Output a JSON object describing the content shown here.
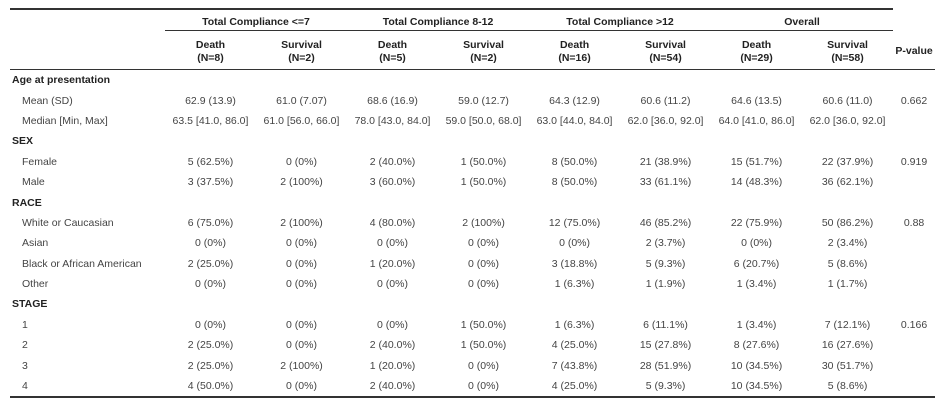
{
  "header": {
    "groups": [
      "Total Compliance <=7",
      "Total Compliance 8-12",
      "Total Compliance >12",
      "Overall"
    ],
    "subs": [
      {
        "name": "Death",
        "n": "(N=8)"
      },
      {
        "name": "Survival",
        "n": "(N=2)"
      },
      {
        "name": "Death",
        "n": "(N=5)"
      },
      {
        "name": "Survival",
        "n": "(N=2)"
      },
      {
        "name": "Death",
        "n": "(N=16)"
      },
      {
        "name": "Survival",
        "n": "(N=54)"
      },
      {
        "name": "Death",
        "n": "(N=29)"
      },
      {
        "name": "Survival",
        "n": "(N=58)"
      }
    ],
    "pvalue": "P-value"
  },
  "rows": [
    {
      "type": "section",
      "label": "Age at presentation",
      "cells": [
        "",
        "",
        "",
        "",
        "",
        "",
        "",
        ""
      ],
      "p": ""
    },
    {
      "type": "item",
      "label": "Mean (SD)",
      "cells": [
        "62.9 (13.9)",
        "61.0 (7.07)",
        "68.6 (16.9)",
        "59.0 (12.7)",
        "64.3 (12.9)",
        "60.6 (11.2)",
        "64.6 (13.5)",
        "60.6 (11.0)"
      ],
      "p": "0.662"
    },
    {
      "type": "item",
      "label": "Median [Min, Max]",
      "cells": [
        "63.5 [41.0, 86.0]",
        "61.0 [56.0, 66.0]",
        "78.0 [43.0, 84.0]",
        "59.0 [50.0, 68.0]",
        "63.0 [44.0, 84.0]",
        "62.0 [36.0, 92.0]",
        "64.0 [41.0, 86.0]",
        "62.0 [36.0, 92.0]"
      ],
      "p": ""
    },
    {
      "type": "section",
      "label": "SEX",
      "cells": [
        "",
        "",
        "",
        "",
        "",
        "",
        "",
        ""
      ],
      "p": ""
    },
    {
      "type": "item",
      "label": "Female",
      "cells": [
        "5 (62.5%)",
        "0 (0%)",
        "2 (40.0%)",
        "1 (50.0%)",
        "8 (50.0%)",
        "21 (38.9%)",
        "15 (51.7%)",
        "22 (37.9%)"
      ],
      "p": "0.919"
    },
    {
      "type": "item",
      "label": "Male",
      "cells": [
        "3 (37.5%)",
        "2 (100%)",
        "3 (60.0%)",
        "1 (50.0%)",
        "8 (50.0%)",
        "33 (61.1%)",
        "14 (48.3%)",
        "36 (62.1%)"
      ],
      "p": ""
    },
    {
      "type": "section",
      "label": "RACE",
      "cells": [
        "",
        "",
        "",
        "",
        "",
        "",
        "",
        ""
      ],
      "p": ""
    },
    {
      "type": "item",
      "label": "White or Caucasian",
      "cells": [
        "6 (75.0%)",
        "2 (100%)",
        "4 (80.0%)",
        "2 (100%)",
        "12 (75.0%)",
        "46 (85.2%)",
        "22 (75.9%)",
        "50 (86.2%)"
      ],
      "p": "0.88"
    },
    {
      "type": "item",
      "label": "Asian",
      "cells": [
        "0 (0%)",
        "0 (0%)",
        "0 (0%)",
        "0 (0%)",
        "0 (0%)",
        "2 (3.7%)",
        "0 (0%)",
        "2 (3.4%)"
      ],
      "p": ""
    },
    {
      "type": "item",
      "label": "Black or African American",
      "cells": [
        "2 (25.0%)",
        "0 (0%)",
        "1 (20.0%)",
        "0 (0%)",
        "3 (18.8%)",
        "5 (9.3%)",
        "6 (20.7%)",
        "5 (8.6%)"
      ],
      "p": ""
    },
    {
      "type": "item",
      "label": "Other",
      "cells": [
        "0 (0%)",
        "0 (0%)",
        "0 (0%)",
        "0 (0%)",
        "1 (6.3%)",
        "1 (1.9%)",
        "1 (3.4%)",
        "1 (1.7%)"
      ],
      "p": ""
    },
    {
      "type": "section",
      "label": "STAGE",
      "cells": [
        "",
        "",
        "",
        "",
        "",
        "",
        "",
        ""
      ],
      "p": ""
    },
    {
      "type": "item",
      "label": "1",
      "cells": [
        "0 (0%)",
        "0 (0%)",
        "0 (0%)",
        "1 (50.0%)",
        "1 (6.3%)",
        "6 (11.1%)",
        "1 (3.4%)",
        "7 (12.1%)"
      ],
      "p": "0.166"
    },
    {
      "type": "item",
      "label": "2",
      "cells": [
        "2 (25.0%)",
        "0 (0%)",
        "2 (40.0%)",
        "1 (50.0%)",
        "4 (25.0%)",
        "15 (27.8%)",
        "8 (27.6%)",
        "16 (27.6%)"
      ],
      "p": ""
    },
    {
      "type": "item",
      "label": "3",
      "cells": [
        "2 (25.0%)",
        "2 (100%)",
        "1 (20.0%)",
        "0 (0%)",
        "7 (43.8%)",
        "28 (51.9%)",
        "10 (34.5%)",
        "30 (51.7%)"
      ],
      "p": ""
    },
    {
      "type": "item",
      "label": "4",
      "cells": [
        "4 (50.0%)",
        "0 (0%)",
        "2 (40.0%)",
        "0 (0%)",
        "4 (25.0%)",
        "5 (9.3%)",
        "10 (34.5%)",
        "5 (8.6%)"
      ],
      "p": ""
    }
  ]
}
